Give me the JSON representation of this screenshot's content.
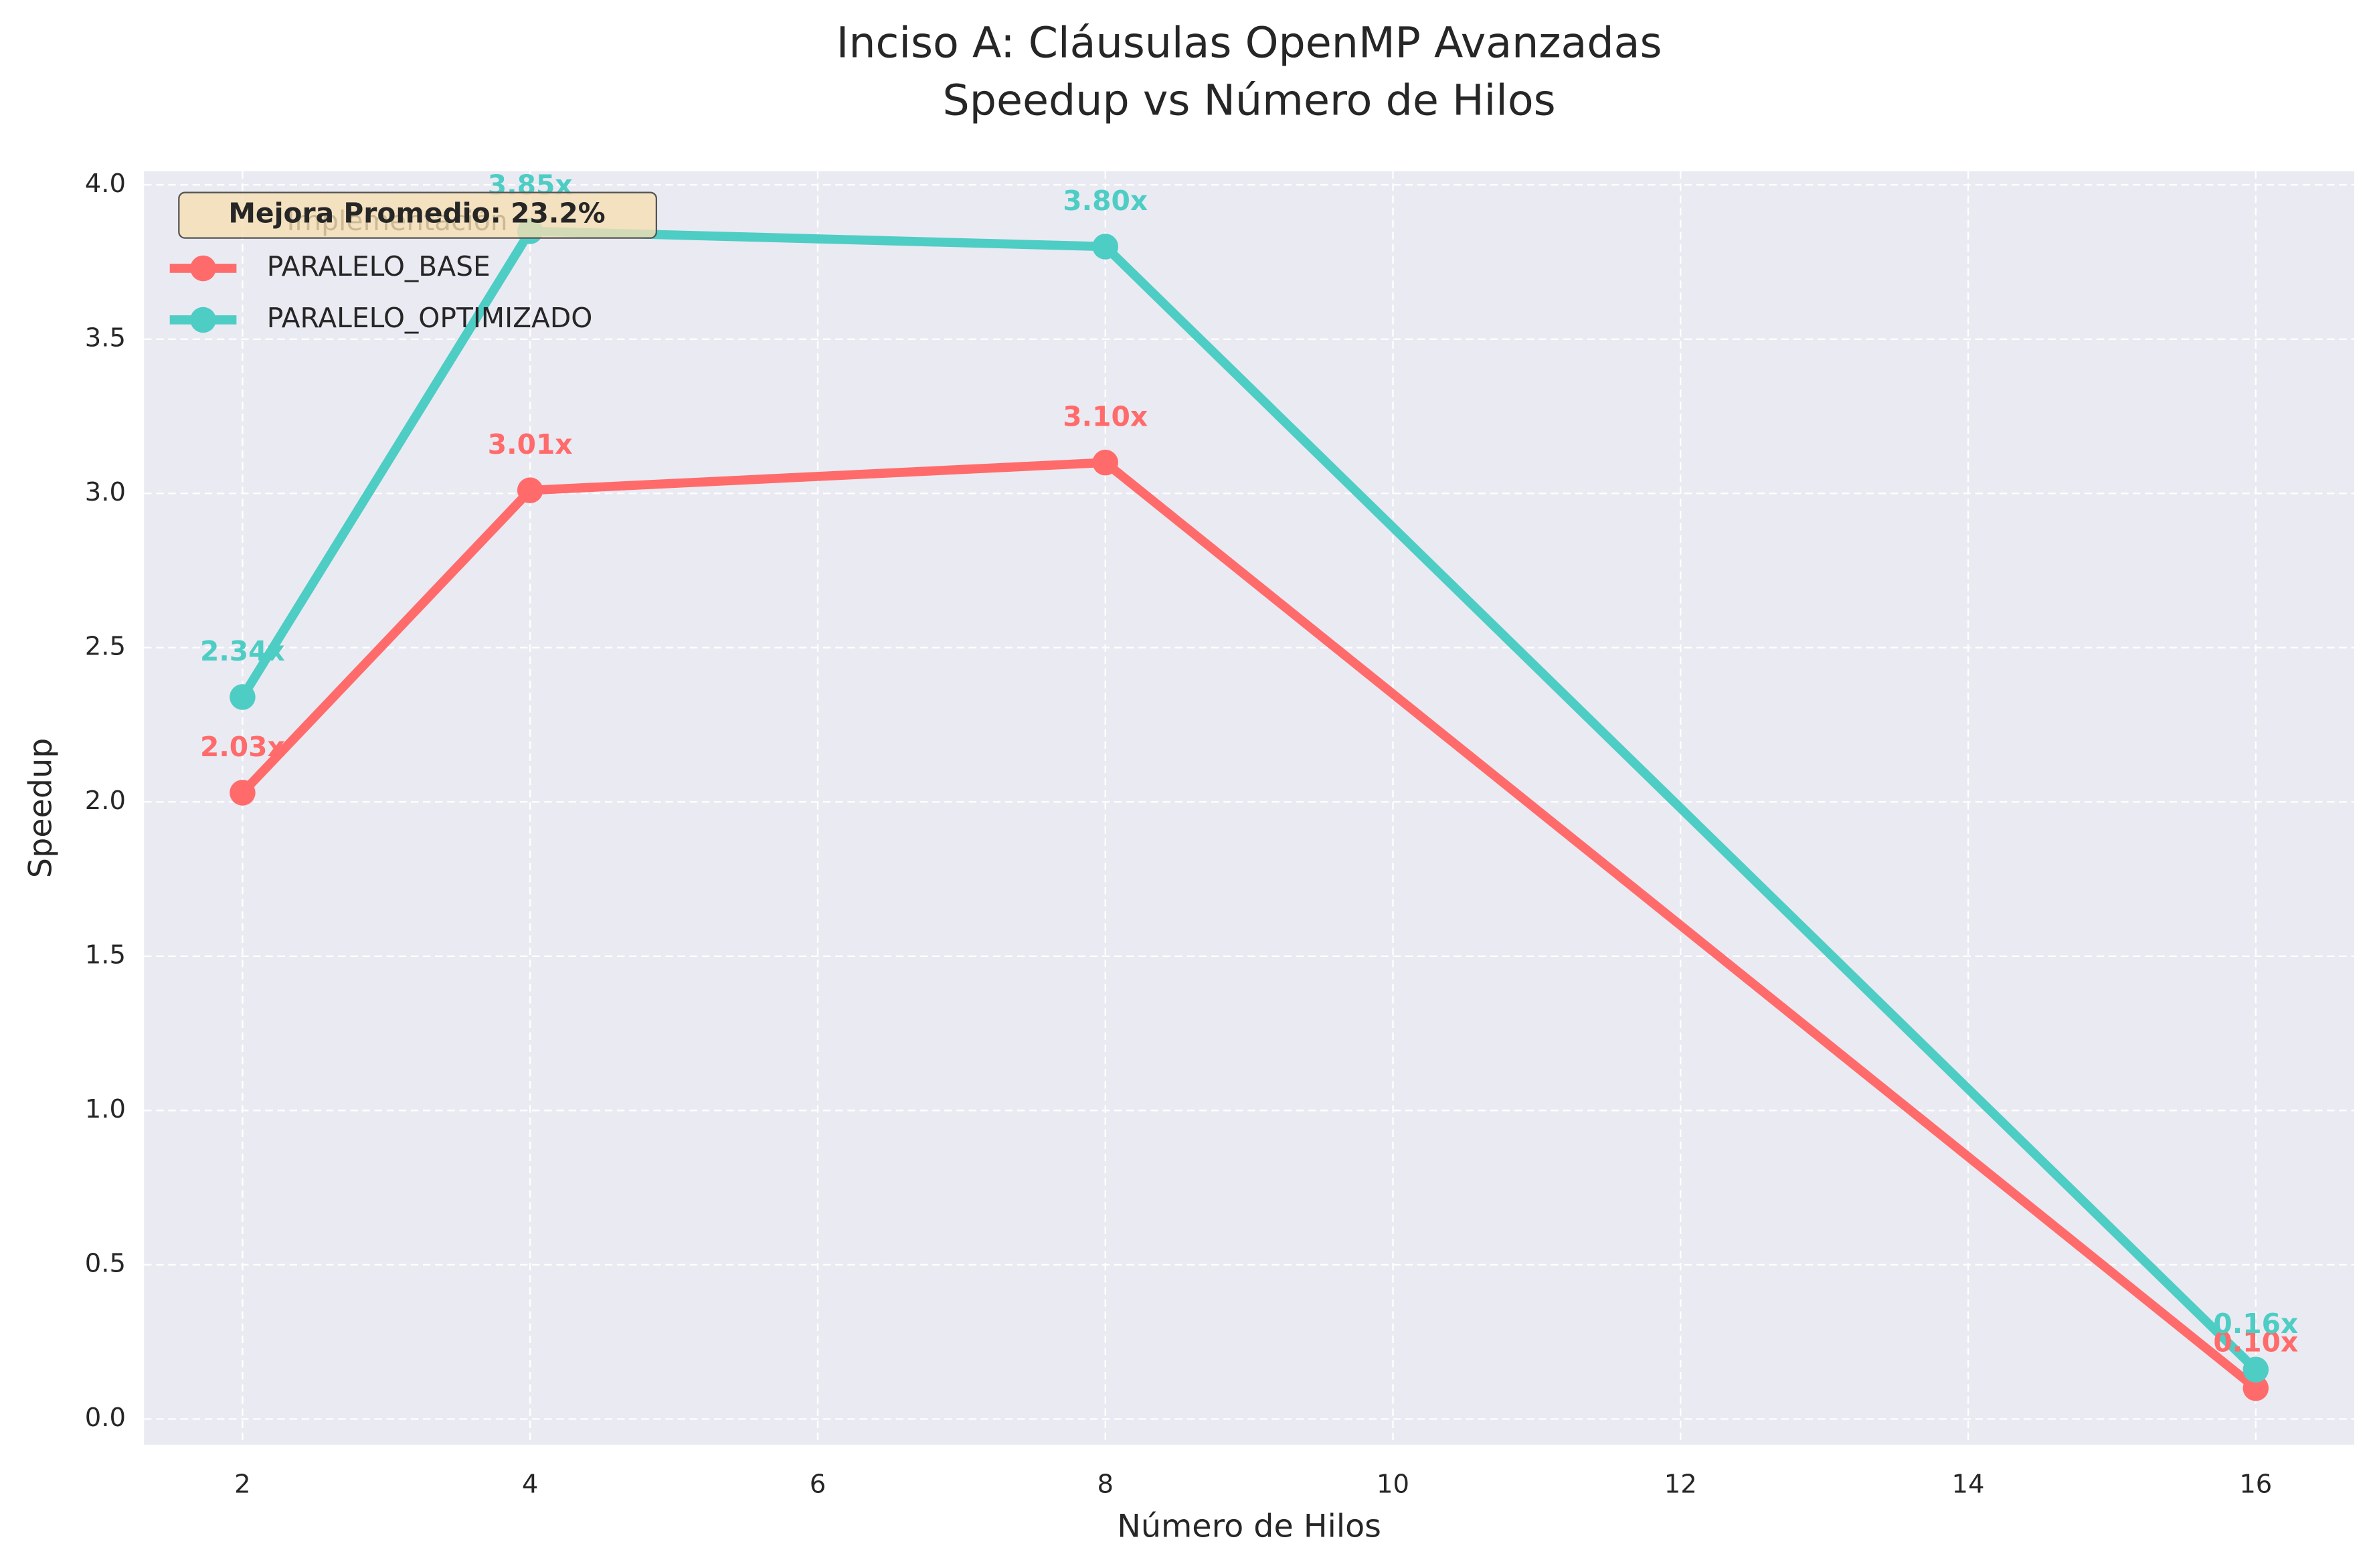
{
  "chart_data": {
    "type": "line",
    "title": "Inciso A: Cláusulas OpenMP Avanzadas",
    "subtitle": "Speedup vs Número de Hilos",
    "x_label": "Número de Hilos",
    "y_label": "Speedup",
    "x": [
      2,
      4,
      8,
      16
    ],
    "series": [
      {
        "name": "PARALELO_BASE",
        "color": "#ff6b6b",
        "values": [
          2.03,
          3.01,
          3.1,
          0.1
        ],
        "value_labels": [
          "2.03x",
          "3.01x",
          "3.10x",
          "0.10x"
        ]
      },
      {
        "name": "PARALELO_OPTIMIZADO",
        "color": "#4ecdc4",
        "values": [
          2.34,
          3.85,
          3.8,
          0.16
        ],
        "value_labels": [
          "2.34x",
          "3.85x",
          "3.80x",
          "0.16x"
        ]
      }
    ],
    "xlim": [
      1.315,
      16.685
    ],
    "ylim": [
      -0.0835,
      4.044
    ],
    "xticks": [
      2,
      4,
      6,
      8,
      10,
      12,
      14,
      16
    ],
    "yticks": [
      {
        "value": 0,
        "label": "0.0"
      },
      {
        "value": 0.5,
        "label": "0.5"
      },
      {
        "value": 1,
        "label": "1.0"
      },
      {
        "value": 1.5,
        "label": "1.5"
      },
      {
        "value": 2,
        "label": "2.0"
      },
      {
        "value": 2.5,
        "label": "2.5"
      },
      {
        "value": 3,
        "label": "3.0"
      },
      {
        "value": 3.5,
        "label": "3.5"
      },
      {
        "value": 4,
        "label": "4.0"
      }
    ],
    "grid": true,
    "legend_title": "Implementación",
    "legend_position": "upper left",
    "annotation": "Mejora Promedio: 23.2%"
  }
}
